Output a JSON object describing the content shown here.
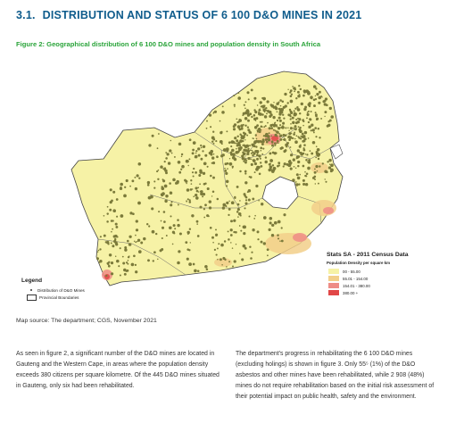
{
  "heading": {
    "number": "3.1.",
    "text": "DISTRIBUTION AND STATUS OF 6 100 D&O MINES IN 2021"
  },
  "figure": {
    "title": "Figure 2: Geographical distribution of 6 100 D&O mines and population density in South Africa"
  },
  "legend": {
    "title": "Legend",
    "items": [
      {
        "label": "Distribution of D&O Mines"
      },
      {
        "label": "Provincial Boundaries"
      }
    ]
  },
  "census": {
    "title": "Stats SA - 2011 Census Data",
    "subtitle": "Population Density per square km",
    "classes": [
      {
        "label": "00 - 55.00",
        "color": "#f6f2a6"
      },
      {
        "label": "55.01 - 154.00",
        "color": "#f2cf8a"
      },
      {
        "label": "154.01 - 380.00",
        "color": "#ee8c86"
      },
      {
        "label": "380.00 +",
        "color": "#e14747"
      }
    ]
  },
  "source": "Map source: The department; CGS, November 2021",
  "paragraphs": {
    "left": "As seen in figure 2, a significant number of the D&O mines are located in Gauteng and the Western Cape, in areas where the population density exceeds 380 citizens per square kilometre. Of the 445 D&O mines situated in Gauteng, only six had been rehabilitated.",
    "right": "The department's progress in rehabilitating the 6 100 D&O mines (excluding holings) is shown in figure 3. Only 55⁵ (1%) of the D&O asbestos and other mines have been rehabilitated, while 2 908 (48%) mines do not require rehabilitation based on the initial risk assessment of their potential impact on public health, safety and the environment."
  }
}
